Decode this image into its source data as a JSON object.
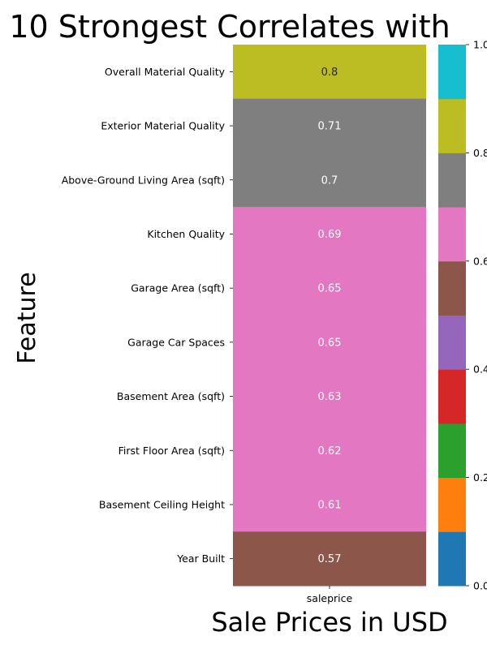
{
  "chart_data": {
    "type": "heatmap",
    "title": "10 Strongest Correlates with",
    "xlabel": "Sale Prices in USD",
    "ylabel": "Feature",
    "columns": [
      "saleprice"
    ],
    "rows": [
      "Overall Material Quality",
      "Exterior Material Quality",
      "Above-Ground Living Area (sqft)",
      "Kitchen Quality",
      "Garage Area (sqft)",
      "Garage Car Spaces",
      "Basement Area (sqft)",
      "First Floor Area (sqft)",
      "Basement Ceiling Height",
      "Year Built"
    ],
    "values": [
      0.8,
      0.71,
      0.7,
      0.69,
      0.65,
      0.65,
      0.63,
      0.62,
      0.61,
      0.57
    ],
    "value_labels": [
      "0.8",
      "0.71",
      "0.7",
      "0.69",
      "0.65",
      "0.65",
      "0.63",
      "0.62",
      "0.61",
      "0.57"
    ],
    "colorbar": {
      "range": [
        0,
        1
      ],
      "tick_labels": [
        "0.0",
        "0.2",
        "0.4",
        "0.6",
        "0.8",
        "1.0"
      ],
      "tick_values": [
        0,
        0.2,
        0.4,
        0.6,
        0.8,
        1.0
      ],
      "palette": [
        "#1f77b4",
        "#ff7f0e",
        "#2ca02c",
        "#d62728",
        "#9467bd",
        "#8c564b",
        "#e377c2",
        "#7f7f7f",
        "#bcbd22",
        "#17becf"
      ],
      "placement": "right"
    },
    "grid": false
  }
}
